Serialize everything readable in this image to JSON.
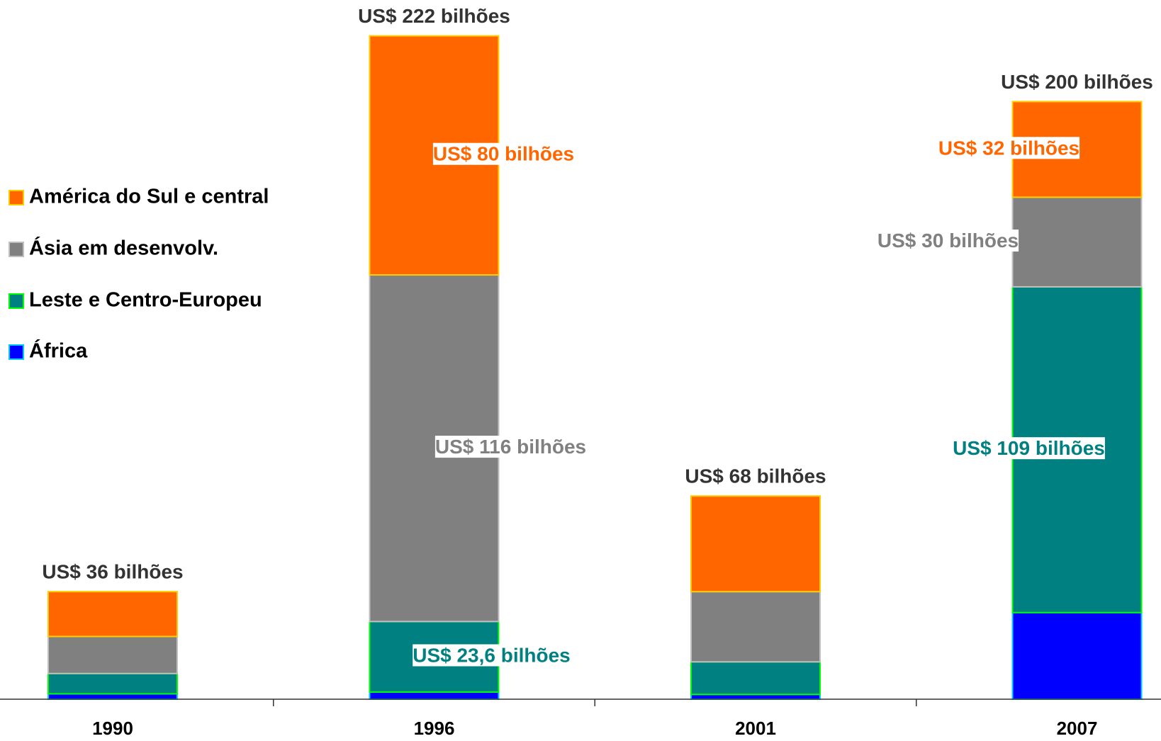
{
  "chart_data": {
    "type": "stacked_bar",
    "categories": [
      "1990",
      "1996",
      "2001",
      "2007"
    ],
    "ylim": [
      0,
      234
    ],
    "series": [
      {
        "name": "África",
        "color": "#0000ff",
        "edge": "#00ccff",
        "values": [
          1.8,
          2.4,
          1.6,
          29
        ],
        "value_labels": [
          null,
          null,
          null,
          null
        ]
      },
      {
        "name": "Leste e Centro-Europeu",
        "color": "#008080",
        "edge": "#00ff00",
        "values": [
          6.8,
          23.6,
          10.9,
          109
        ],
        "value_labels": [
          null,
          "US$ 23,6 bilhões",
          null,
          "US$ 109 bilhões"
        ]
      },
      {
        "name": "Ásia em desenvolv.",
        "color": "#808080",
        "edge": "#c0c0c0",
        "values": [
          12.4,
          116,
          23.5,
          30
        ],
        "value_labels": [
          null,
          "US$ 116 bilhões",
          null,
          "US$ 30 bilhões"
        ]
      },
      {
        "name": "América do Sul e central",
        "color": "#ff6600",
        "edge": "#ffcc00",
        "values": [
          15,
          80,
          32,
          32
        ],
        "value_labels": [
          null,
          "US$ 80 bilhões",
          null,
          "US$ 32 bilhões"
        ]
      }
    ],
    "totals": {
      "values": [
        36,
        222,
        68,
        200
      ],
      "labels": [
        "US$ 36 bilhões",
        "US$ 222 bilhões",
        "US$ 68 bilhões",
        "US$ 200 bilhões"
      ]
    }
  }
}
